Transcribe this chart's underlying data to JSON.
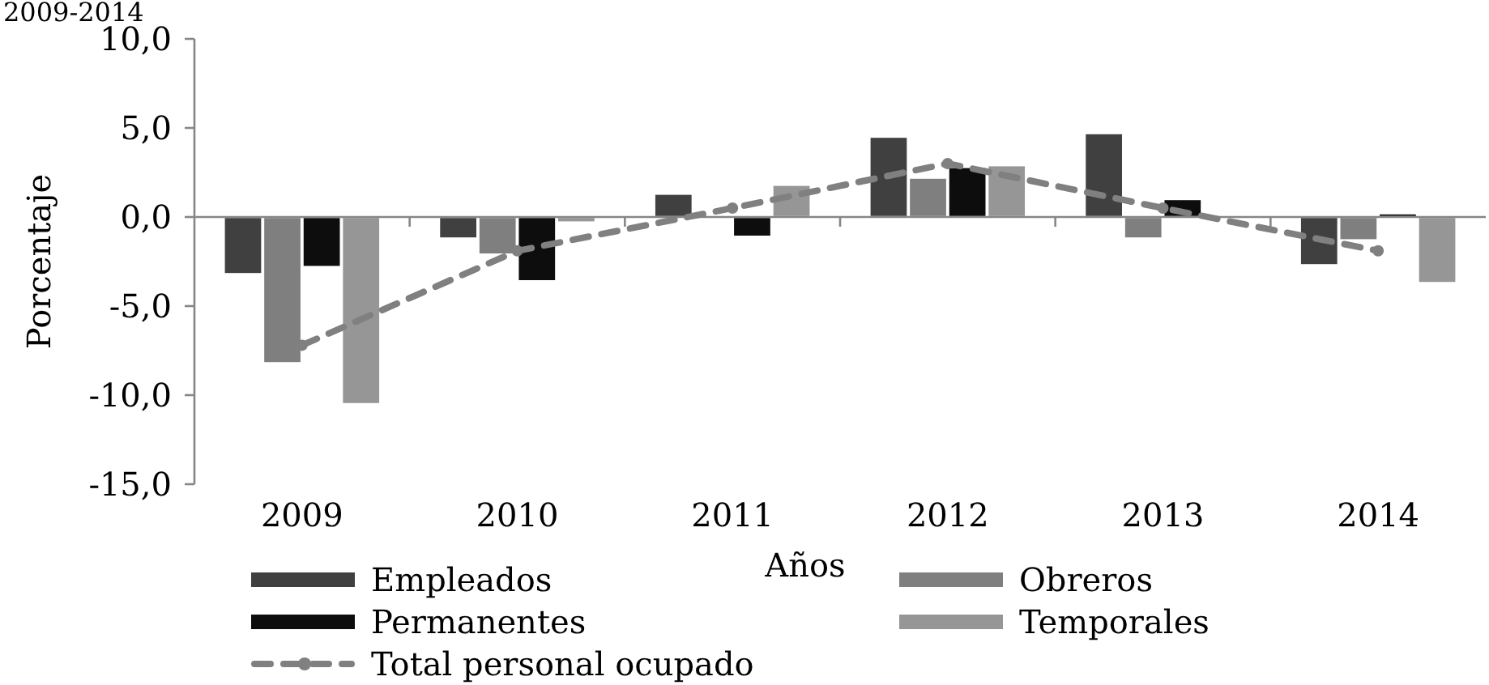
{
  "chart_data": {
    "type": "bar",
    "title": "2009-2014",
    "xlabel": "Años",
    "ylabel": "Porcentaje",
    "legend": "bottom",
    "categories": [
      "2009",
      "2010",
      "2011",
      "2012",
      "2013",
      "2014"
    ],
    "series": [
      {
        "name": "Empleados",
        "color": "#404040",
        "values": [
          -3.2,
          -1.2,
          1.3,
          4.5,
          4.7,
          -2.7
        ]
      },
      {
        "name": "Obreros",
        "color": "#7f7f7f",
        "values": [
          -8.2,
          -2.1,
          null,
          2.2,
          -1.2,
          -1.3
        ]
      },
      {
        "name": "Permanentes",
        "color": "#0d0d0d",
        "values": [
          -2.8,
          -3.6,
          -1.1,
          2.8,
          1.0,
          0.2
        ]
      },
      {
        "name": "Temporales",
        "color": "#969696",
        "values": [
          -10.5,
          -0.3,
          1.8,
          2.9,
          null,
          -3.7
        ]
      },
      {
        "name": "Total personal ocupado",
        "type": "line",
        "color": "#808080",
        "line_style": "dashed",
        "marker": "circle",
        "values": [
          -7.2,
          -1.9,
          0.5,
          3.0,
          0.5,
          -1.9
        ]
      }
    ],
    "ylim": [
      -15,
      10
    ],
    "yticks": [
      {
        "value": -15,
        "label": "-15,0"
      },
      {
        "value": -10,
        "label": "-10,0"
      },
      {
        "value": -5,
        "label": "-5,0"
      },
      {
        "value": 0,
        "label": "0,0"
      },
      {
        "value": 5,
        "label": "5,0"
      },
      {
        "value": 10,
        "label": "10,0"
      }
    ]
  }
}
